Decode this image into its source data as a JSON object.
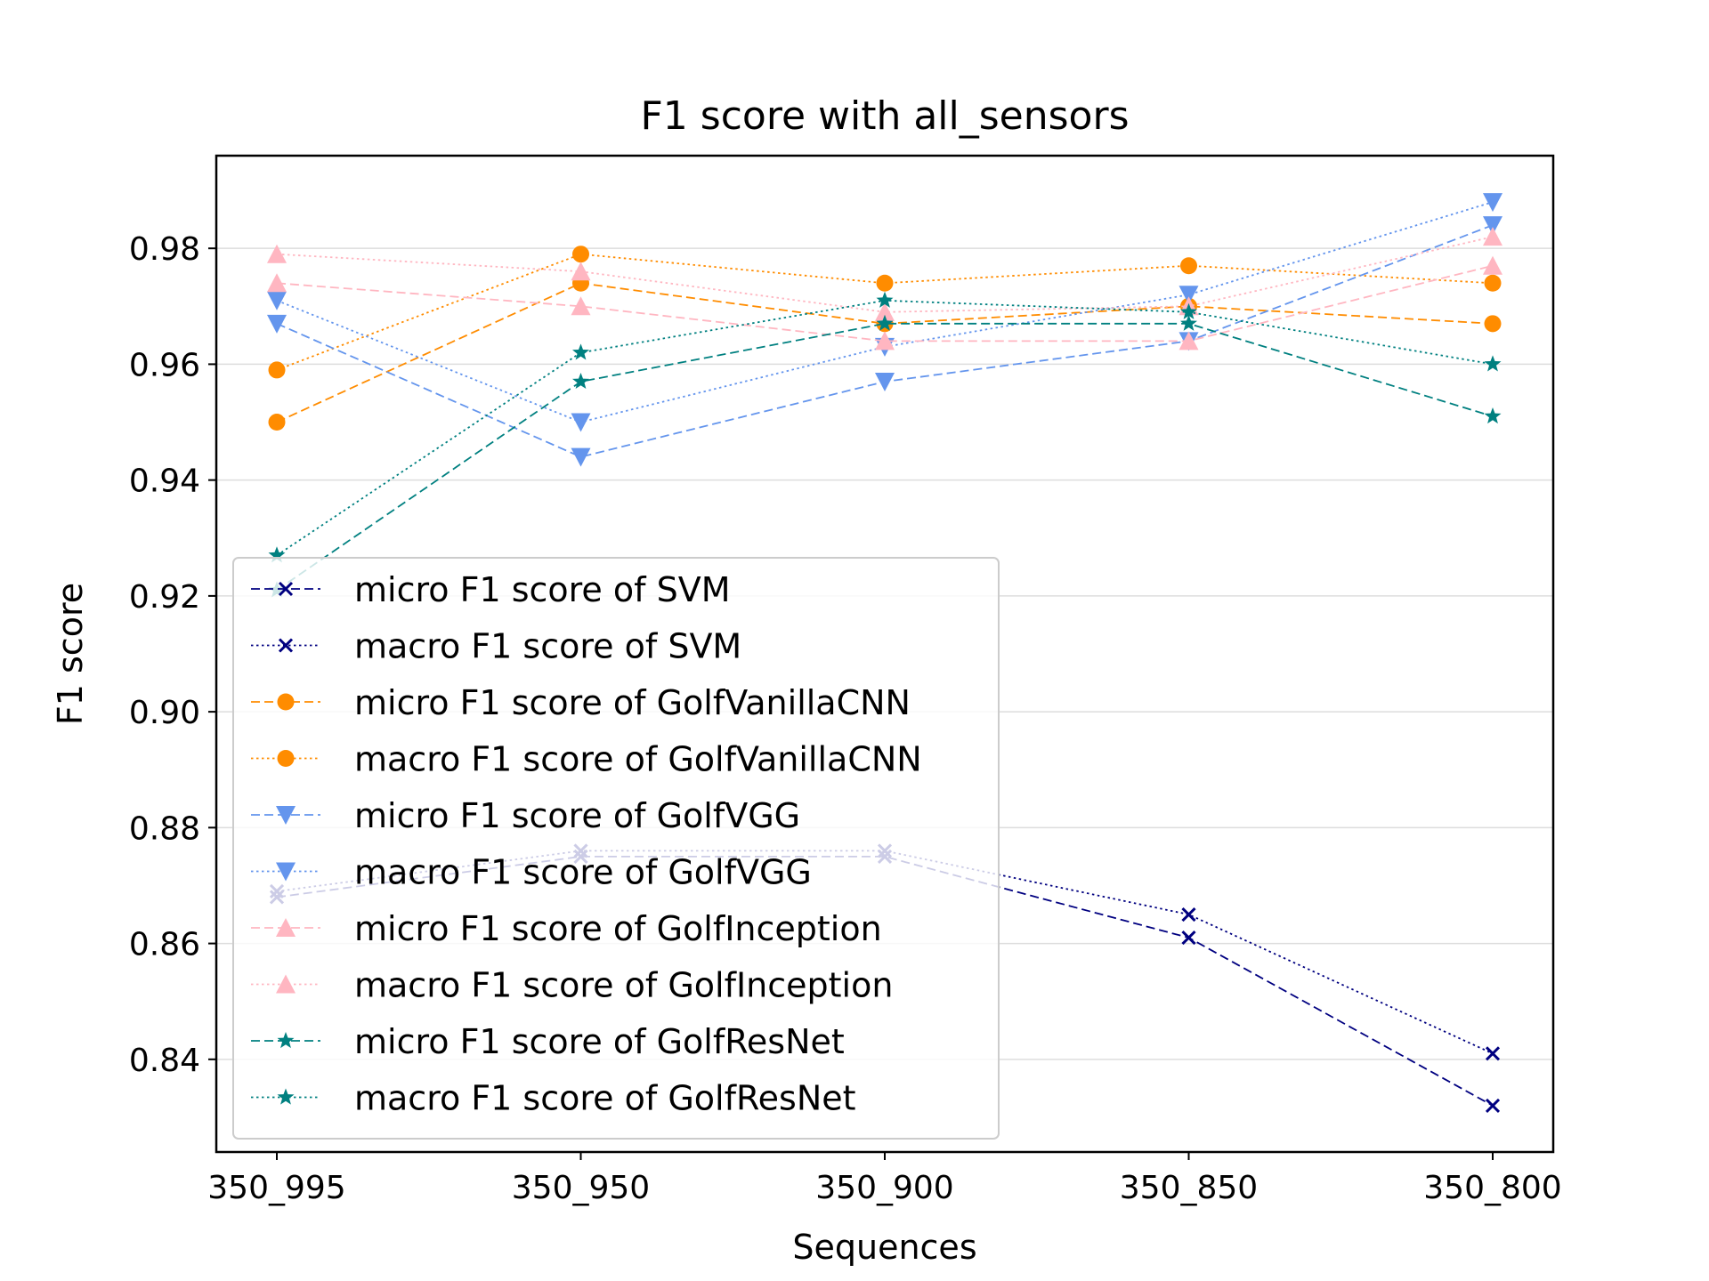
{
  "chart_data": {
    "type": "line",
    "title": "F1 score with all_sensors",
    "xlabel": "Sequences",
    "ylabel": "F1 score",
    "categories": [
      "350_995",
      "350_950",
      "350_900",
      "350_850",
      "350_800"
    ],
    "ylim": [
      0.824,
      0.996
    ],
    "yticks": [
      0.84,
      0.86,
      0.88,
      0.9,
      0.92,
      0.94,
      0.96,
      0.98
    ],
    "ytick_labels": [
      "0.84",
      "0.86",
      "0.88",
      "0.90",
      "0.92",
      "0.94",
      "0.96",
      "0.98"
    ],
    "grid": "y-axis horizontal lines",
    "legend_position": "lower-left",
    "series": [
      {
        "name": "micro F1 score of SVM",
        "color": "#000080",
        "linestyle": "dashed",
        "marker": "x",
        "values": [
          0.868,
          0.875,
          0.875,
          0.861,
          0.832
        ]
      },
      {
        "name": "macro F1 score of SVM",
        "color": "#000080",
        "linestyle": "dotted",
        "marker": "x",
        "values": [
          0.869,
          0.876,
          0.876,
          0.865,
          0.841
        ]
      },
      {
        "name": "micro F1 score of GolfVanillaCNN",
        "color": "#ff8c00",
        "linestyle": "dashed",
        "marker": "circle",
        "values": [
          0.95,
          0.974,
          0.967,
          0.97,
          0.967
        ]
      },
      {
        "name": "macro F1 score of GolfVanillaCNN",
        "color": "#ff8c00",
        "linestyle": "dotted",
        "marker": "circle",
        "values": [
          0.959,
          0.979,
          0.974,
          0.977,
          0.974
        ]
      },
      {
        "name": "micro F1 score of GolfVGG",
        "color": "#6495ed",
        "linestyle": "dashed",
        "marker": "triangle-down",
        "values": [
          0.967,
          0.944,
          0.957,
          0.964,
          0.984
        ]
      },
      {
        "name": "macro F1 score of GolfVGG",
        "color": "#6495ed",
        "linestyle": "dotted",
        "marker": "triangle-down",
        "values": [
          0.971,
          0.95,
          0.963,
          0.972,
          0.988
        ]
      },
      {
        "name": "micro F1 score of GolfInception",
        "color": "#ffb6c1",
        "linestyle": "dashed",
        "marker": "triangle-up",
        "values": [
          0.974,
          0.97,
          0.964,
          0.964,
          0.977
        ]
      },
      {
        "name": "macro F1 score of GolfInception",
        "color": "#ffb6c1",
        "linestyle": "dotted",
        "marker": "triangle-up",
        "values": [
          0.979,
          0.976,
          0.969,
          0.97,
          0.982
        ]
      },
      {
        "name": "micro F1 score of GolfResNet",
        "color": "#008080",
        "linestyle": "dashed",
        "marker": "star",
        "values": [
          0.921,
          0.957,
          0.967,
          0.967,
          0.951
        ]
      },
      {
        "name": "macro F1 score of GolfResNet",
        "color": "#008080",
        "linestyle": "dotted",
        "marker": "star",
        "values": [
          0.927,
          0.962,
          0.971,
          0.969,
          0.96
        ]
      }
    ]
  }
}
